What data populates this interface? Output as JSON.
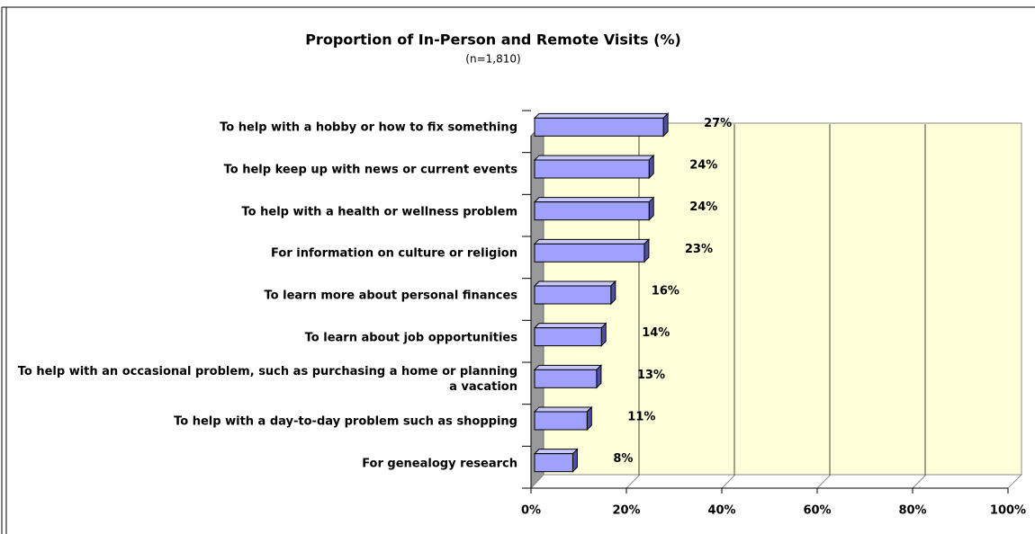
{
  "chart_data": {
    "type": "bar3d_horizontal",
    "title": "Proportion of In-Person and Remote Visits (%)",
    "subtitle": "(n=1,810)",
    "categories": [
      "To help with a hobby or how to fix something",
      "To help keep up with news or current events",
      "To help with a health or wellness problem",
      "For information on culture or religion",
      "To learn more about personal finances",
      "To learn about job opportunities",
      "To help with an occasional problem, such as purchasing a home or planning a vacation",
      "To help with a day-to-day problem such as shopping",
      "For genealogy research"
    ],
    "values": [
      27,
      24,
      24,
      23,
      16,
      14,
      13,
      11,
      8
    ],
    "value_labels": [
      "27%",
      "24%",
      "24%",
      "23%",
      "16%",
      "14%",
      "13%",
      "11%",
      "8%"
    ],
    "color": "#a0a0ff",
    "xlim": [
      0,
      100
    ],
    "xticks": [
      {
        "value": 0,
        "label": "0%"
      },
      {
        "value": 20,
        "label": "20%"
      },
      {
        "value": 40,
        "label": "40%"
      },
      {
        "value": 60,
        "label": "60%"
      },
      {
        "value": 80,
        "label": "80%"
      },
      {
        "value": 100,
        "label": "100%"
      }
    ],
    "grid": true
  }
}
